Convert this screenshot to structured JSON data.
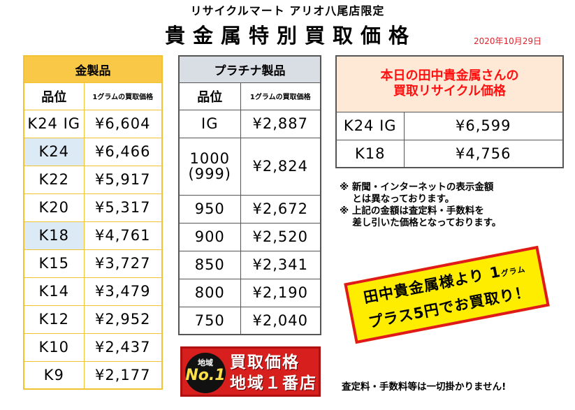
{
  "subtitle": "リサイクルマート アリオ八尾店限定",
  "title": "貴金属特別買取価格",
  "date": "2020年10月29日",
  "gold": {
    "header": "金製品",
    "col_name": "品位",
    "col_price": "1グラムの買取価格",
    "rows": [
      {
        "name": "K24 IG",
        "price": "¥6,604"
      },
      {
        "name": "K24",
        "price": "¥6,466"
      },
      {
        "name": "K22",
        "price": "¥5,917"
      },
      {
        "name": "K20",
        "price": "¥5,317"
      },
      {
        "name": "K18",
        "price": "¥4,761"
      },
      {
        "name": "K15",
        "price": "¥3,727"
      },
      {
        "name": "K14",
        "price": "¥3,479"
      },
      {
        "name": "K12",
        "price": "¥2,952"
      },
      {
        "name": "K10",
        "price": "¥2,437"
      },
      {
        "name": "K9",
        "price": "¥2,177"
      }
    ]
  },
  "platinum": {
    "header": "プラチナ製品",
    "col_name": "品位",
    "col_price": "1グラムの買取価格",
    "rows": [
      {
        "name": "IG",
        "price": "¥2,887"
      },
      {
        "name": "1000",
        "name2": "(999)",
        "price": "¥2,824"
      },
      {
        "name": "950",
        "price": "¥2,672"
      },
      {
        "name": "900",
        "price": "¥2,520"
      },
      {
        "name": "850",
        "price": "¥2,341"
      },
      {
        "name": "800",
        "price": "¥2,190"
      },
      {
        "name": "750",
        "price": "¥2,040"
      }
    ]
  },
  "tanaka": {
    "title_line1": "本日の田中貴金属さんの",
    "title_line2": "買取リサイクル価格",
    "rows": [
      {
        "name": "K24 IG",
        "price": "¥6,599"
      },
      {
        "name": "K18",
        "price": "¥4,756"
      }
    ]
  },
  "notes": [
    "※ 新聞・インターネットの表示金額",
    "　 とは異なっております。",
    "※ 上記の金額は査定料・手数料を",
    "　 差し引いた価格となっております。"
  ],
  "promo": {
    "line1": "田中貴金属様より 1",
    "unit": "グラム",
    "line2": "プラス5円でお買取り！"
  },
  "badge": {
    "area": "地域",
    "no1": "No.1",
    "line1": "買取価格",
    "line2": "地域１番店"
  },
  "footer_note": "査定料・手数料等は一切掛かりません!"
}
